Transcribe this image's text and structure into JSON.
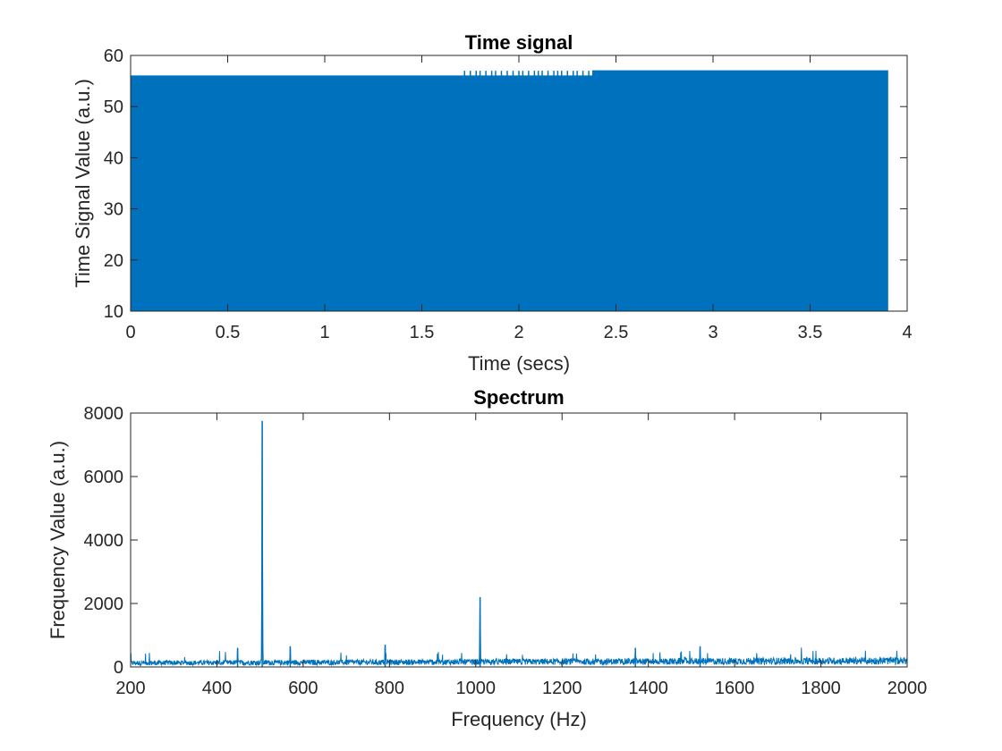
{
  "chart_data": [
    {
      "type": "line",
      "title": "Time signal",
      "xlabel": "Time (secs)",
      "ylabel": "Time Signal Value (a.u.)",
      "xlim": [
        0,
        4
      ],
      "ylim": [
        10,
        60
      ],
      "xticks": [
        0,
        0.5,
        1,
        1.5,
        2,
        2.5,
        3,
        3.5,
        4
      ],
      "xtick_labels": [
        "0",
        "0.5",
        "1",
        "1.5",
        "2",
        "2.5",
        "3",
        "3.5",
        "4"
      ],
      "yticks": [
        10,
        20,
        30,
        40,
        50,
        60
      ],
      "ytick_labels": [
        "10",
        "20",
        "30",
        "40",
        "50",
        "60"
      ],
      "grid": false,
      "series": [
        {
          "color": "#0072BD",
          "x_range": [
            0,
            3.9
          ],
          "envelope_min": 10,
          "envelope_max": 56,
          "envelope_max_late": 57,
          "late_start": 2.38,
          "spike_times": [
            1.72,
            1.75,
            1.78,
            1.8,
            1.83,
            1.86,
            1.88,
            1.91,
            1.94,
            1.97,
            2.0,
            2.02,
            2.05,
            2.08,
            2.1,
            2.12,
            2.15,
            2.18,
            2.2,
            2.22,
            2.25,
            2.28,
            2.3,
            2.33,
            2.36
          ]
        }
      ]
    },
    {
      "type": "line",
      "title": "Spectrum",
      "xlabel": "Frequency (Hz)",
      "ylabel": "Frequency Value (a.u.)",
      "xlim": [
        200,
        2000
      ],
      "ylim": [
        0,
        8000
      ],
      "xticks": [
        200,
        400,
        600,
        800,
        1000,
        1200,
        1400,
        1600,
        1800,
        2000
      ],
      "xtick_labels": [
        "200",
        "400",
        "600",
        "800",
        "1000",
        "1200",
        "1400",
        "1600",
        "1800",
        "2000"
      ],
      "yticks": [
        0,
        2000,
        4000,
        6000,
        8000
      ],
      "ytick_labels": [
        "0",
        "2000",
        "4000",
        "6000",
        "8000"
      ],
      "grid": false,
      "series": [
        {
          "color": "#0072BD",
          "noise_floor": 150,
          "noise_floor_high": 230,
          "peaks": [
            {
              "x": 505,
              "y": 7750
            },
            {
              "x": 1010,
              "y": 2200
            },
            {
              "x": 448,
              "y": 600
            },
            {
              "x": 570,
              "y": 650
            },
            {
              "x": 790,
              "y": 700
            },
            {
              "x": 1370,
              "y": 600
            },
            {
              "x": 1520,
              "y": 650
            }
          ]
        }
      ]
    }
  ]
}
